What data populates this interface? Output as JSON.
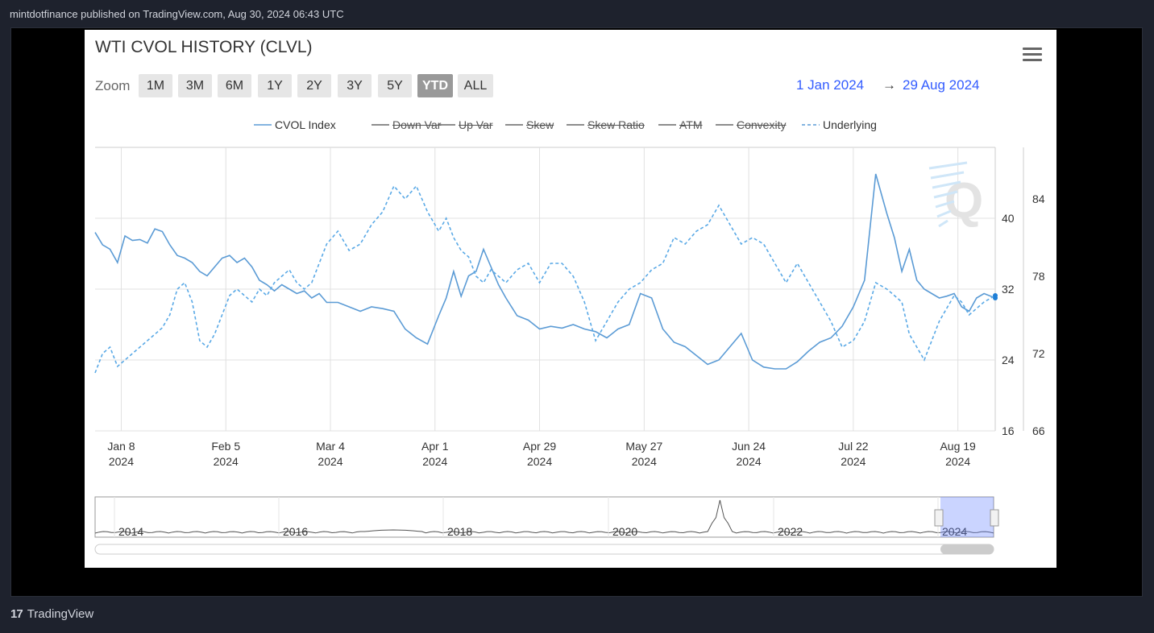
{
  "header": {
    "text": "mintdotfinance published on TradingView.com, Aug 30, 2024 06:43 UTC"
  },
  "footer": {
    "logo": "17",
    "brand": "TradingView"
  },
  "chart_header": {
    "title": "WTI CVOL HISTORY (CLVL)",
    "zoom_label": "Zoom",
    "zoom_buttons": [
      "1M",
      "3M",
      "6M",
      "1Y",
      "2Y",
      "3Y",
      "5Y",
      "YTD",
      "ALL"
    ],
    "active_zoom": "YTD",
    "range_from": "1 Jan 2024",
    "range_arrow": "→",
    "range_to": "29 Aug 2024",
    "range_color": "#335cff",
    "menu_icon": "hamburger-menu-icon"
  },
  "legend": [
    {
      "label": "CVOL Index",
      "enabled": true,
      "dashed": false
    },
    {
      "label": "Down Var",
      "enabled": false,
      "dashed": false
    },
    {
      "label": "Up Var",
      "enabled": false,
      "dashed": false
    },
    {
      "label": "Skew",
      "enabled": false,
      "dashed": false
    },
    {
      "label": "Skew Ratio",
      "enabled": false,
      "dashed": false
    },
    {
      "label": "ATM",
      "enabled": false,
      "dashed": false
    },
    {
      "label": "Convexity",
      "enabled": false,
      "dashed": false
    },
    {
      "label": "Underlying",
      "enabled": true,
      "dashed": true
    }
  ],
  "chart_data": {
    "type": "line",
    "x_ticks": [
      {
        "label": "Jan 8",
        "year": "2024",
        "date": "2024-01-08"
      },
      {
        "label": "Feb 5",
        "year": "2024",
        "date": "2024-02-05"
      },
      {
        "label": "Mar 4",
        "year": "2024",
        "date": "2024-03-04"
      },
      {
        "label": "Apr 1",
        "year": "2024",
        "date": "2024-04-01"
      },
      {
        "label": "Apr 29",
        "year": "2024",
        "date": "2024-04-29"
      },
      {
        "label": "May 27",
        "year": "2024",
        "date": "2024-05-27"
      },
      {
        "label": "Jun 24",
        "year": "2024",
        "date": "2024-06-24"
      },
      {
        "label": "Jul 22",
        "year": "2024",
        "date": "2024-07-22"
      },
      {
        "label": "Aug 19",
        "year": "2024",
        "date": "2024-08-19"
      }
    ],
    "x_range": [
      "2024-01-01",
      "2024-08-29"
    ],
    "y_left": {
      "ticks": [
        "16",
        "24",
        "32",
        "40"
      ],
      "ylim": [
        16,
        48
      ]
    },
    "y_right": {
      "ticks": [
        "66",
        "72",
        "78",
        "84"
      ],
      "ylim": [
        66,
        88
      ]
    },
    "grid": true,
    "series": [
      {
        "name": "CVOL Index",
        "axis": "left",
        "color": "#5b9bd5",
        "dashed": false,
        "x": [
          "2024-01-01",
          "2024-01-03",
          "2024-01-05",
          "2024-01-07",
          "2024-01-09",
          "2024-01-11",
          "2024-01-13",
          "2024-01-15",
          "2024-01-17",
          "2024-01-19",
          "2024-01-21",
          "2024-01-23",
          "2024-01-25",
          "2024-01-27",
          "2024-01-29",
          "2024-01-31",
          "2024-02-02",
          "2024-02-04",
          "2024-02-06",
          "2024-02-08",
          "2024-02-10",
          "2024-02-12",
          "2024-02-14",
          "2024-02-16",
          "2024-02-18",
          "2024-02-20",
          "2024-02-22",
          "2024-02-24",
          "2024-02-26",
          "2024-02-28",
          "2024-03-01",
          "2024-03-03",
          "2024-03-06",
          "2024-03-09",
          "2024-03-12",
          "2024-03-15",
          "2024-03-18",
          "2024-03-21",
          "2024-03-24",
          "2024-03-27",
          "2024-03-30",
          "2024-04-02",
          "2024-04-04",
          "2024-04-06",
          "2024-04-08",
          "2024-04-10",
          "2024-04-12",
          "2024-04-14",
          "2024-04-16",
          "2024-04-18",
          "2024-04-20",
          "2024-04-23",
          "2024-04-26",
          "2024-04-29",
          "2024-05-02",
          "2024-05-05",
          "2024-05-08",
          "2024-05-11",
          "2024-05-14",
          "2024-05-17",
          "2024-05-20",
          "2024-05-23",
          "2024-05-26",
          "2024-05-29",
          "2024-06-01",
          "2024-06-04",
          "2024-06-07",
          "2024-06-10",
          "2024-06-13",
          "2024-06-16",
          "2024-06-19",
          "2024-06-22",
          "2024-06-25",
          "2024-06-28",
          "2024-07-01",
          "2024-07-04",
          "2024-07-07",
          "2024-07-10",
          "2024-07-13",
          "2024-07-16",
          "2024-07-19",
          "2024-07-22",
          "2024-07-25",
          "2024-07-28",
          "2024-07-31",
          "2024-08-02",
          "2024-08-04",
          "2024-08-06",
          "2024-08-08",
          "2024-08-10",
          "2024-08-12",
          "2024-08-14",
          "2024-08-16",
          "2024-08-18",
          "2024-08-20",
          "2024-08-22",
          "2024-08-24",
          "2024-08-26",
          "2024-08-29"
        ],
        "values": [
          38.4,
          37,
          36.5,
          35,
          38,
          37.5,
          37.6,
          37.2,
          38.8,
          38.5,
          37,
          35.8,
          35.5,
          35,
          34,
          33.5,
          34.5,
          35.5,
          35.8,
          35,
          35.5,
          34.5,
          33,
          32.5,
          31.8,
          32.5,
          32,
          31.5,
          31.8,
          31,
          31.5,
          30.5,
          30.5,
          30,
          29.5,
          30,
          29.8,
          29.5,
          27.5,
          26.5,
          25.8,
          29,
          31,
          34,
          31.2,
          33.5,
          34,
          36.5,
          34.5,
          32.5,
          31,
          29,
          28.5,
          27.5,
          27.8,
          27.6,
          28,
          27.5,
          27.2,
          26.5,
          27.5,
          28,
          31.5,
          31,
          27.5,
          26,
          25.5,
          24.5,
          23.5,
          24,
          25.5,
          27,
          24,
          23.2,
          23,
          23,
          23.8,
          25,
          26,
          26.5,
          27.8,
          30,
          33,
          45,
          40.5,
          37.8,
          34,
          36.5,
          33,
          32,
          31.5,
          31,
          31.2,
          31.5,
          30,
          29.5,
          31,
          31.5,
          31
        ]
      },
      {
        "name": "Underlying",
        "axis": "right",
        "color": "#5aa9e6",
        "dashed": true,
        "x": [
          "2024-01-01",
          "2024-01-03",
          "2024-01-05",
          "2024-01-07",
          "2024-01-09",
          "2024-01-11",
          "2024-01-13",
          "2024-01-15",
          "2024-01-17",
          "2024-01-19",
          "2024-01-21",
          "2024-01-23",
          "2024-01-25",
          "2024-01-27",
          "2024-01-29",
          "2024-01-31",
          "2024-02-02",
          "2024-02-04",
          "2024-02-06",
          "2024-02-08",
          "2024-02-10",
          "2024-02-12",
          "2024-02-14",
          "2024-02-16",
          "2024-02-18",
          "2024-02-20",
          "2024-02-22",
          "2024-02-24",
          "2024-02-26",
          "2024-02-28",
          "2024-03-01",
          "2024-03-03",
          "2024-03-06",
          "2024-03-09",
          "2024-03-12",
          "2024-03-15",
          "2024-03-18",
          "2024-03-21",
          "2024-03-24",
          "2024-03-27",
          "2024-03-30",
          "2024-04-02",
          "2024-04-04",
          "2024-04-06",
          "2024-04-08",
          "2024-04-10",
          "2024-04-12",
          "2024-04-14",
          "2024-04-16",
          "2024-04-18",
          "2024-04-20",
          "2024-04-23",
          "2024-04-26",
          "2024-04-29",
          "2024-05-02",
          "2024-05-05",
          "2024-05-08",
          "2024-05-11",
          "2024-05-14",
          "2024-05-17",
          "2024-05-20",
          "2024-05-23",
          "2024-05-26",
          "2024-05-29",
          "2024-06-01",
          "2024-06-04",
          "2024-06-07",
          "2024-06-10",
          "2024-06-13",
          "2024-06-16",
          "2024-06-19",
          "2024-06-22",
          "2024-06-25",
          "2024-06-28",
          "2024-07-01",
          "2024-07-04",
          "2024-07-07",
          "2024-07-10",
          "2024-07-13",
          "2024-07-16",
          "2024-07-19",
          "2024-07-22",
          "2024-07-25",
          "2024-07-28",
          "2024-07-31",
          "2024-08-02",
          "2024-08-04",
          "2024-08-06",
          "2024-08-08",
          "2024-08-10",
          "2024-08-12",
          "2024-08-14",
          "2024-08-16",
          "2024-08-18",
          "2024-08-20",
          "2024-08-22",
          "2024-08-24",
          "2024-08-26",
          "2024-08-29"
        ],
        "values": [
          70.5,
          72,
          72.5,
          71,
          71.5,
          72,
          72.5,
          73,
          73.5,
          74,
          75,
          77,
          77.5,
          76,
          73,
          72.5,
          73.5,
          75,
          76.5,
          77,
          76.5,
          76,
          77,
          76.5,
          77.5,
          78,
          78.5,
          77.5,
          77,
          77.5,
          79,
          80.5,
          81.5,
          80,
          80.5,
          82,
          83,
          85,
          84,
          85,
          83,
          81.5,
          82.5,
          81,
          80,
          79.5,
          78,
          77.5,
          78.5,
          78,
          77.5,
          78.5,
          79,
          77.5,
          79,
          79,
          78,
          76,
          73,
          74.5,
          76,
          77,
          77.5,
          78.5,
          79,
          81,
          80.5,
          81.5,
          82,
          83.5,
          82,
          80.5,
          81,
          80.5,
          79,
          77.5,
          79,
          77.5,
          76,
          74.5,
          72.5,
          73,
          74.5,
          77.5,
          77,
          76.5,
          76,
          73.5,
          72.5,
          71.5,
          73,
          74.5,
          75.5,
          76.5,
          76,
          75,
          75.5,
          76,
          76.5
        ]
      }
    ]
  },
  "navigator": {
    "year_labels": [
      "2014",
      "2016",
      "2018",
      "2020",
      "2022",
      "2024"
    ],
    "selection": "2024"
  }
}
